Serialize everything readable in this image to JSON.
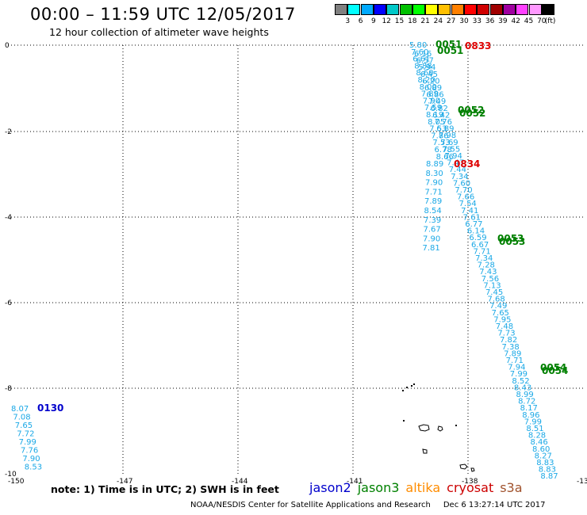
{
  "title": "00:00 – 11:59 UTC 12/05/2017",
  "subtitle": "12 hour collection of altimeter wave heights",
  "legend": {
    "unit": "(ft)",
    "colors": [
      "#808080",
      "#00ffff",
      "#00aaff",
      "#0000ff",
      "#00c8c8",
      "#00c000",
      "#00ff00",
      "#ffff00",
      "#ffc000",
      "#ff8000",
      "#ff0000",
      "#d00000",
      "#a00000",
      "#a000a0",
      "#ff40ff",
      "#ff99ff",
      "#000000"
    ],
    "labels": [
      "3",
      "6",
      "9",
      "12",
      "15",
      "18",
      "21",
      "24",
      "27",
      "30",
      "33",
      "36",
      "39",
      "42",
      "45",
      "70"
    ]
  },
  "axes": {
    "lon_labels": [
      "-150",
      "-147",
      "-144",
      "-141",
      "-138",
      "-13"
    ],
    "lat_labels": [
      "0",
      "-2",
      "-4",
      "-6",
      "-8",
      "-10"
    ]
  },
  "wave_color": "#1aa8e6",
  "track_sw": [
    "8.07",
    "7.08",
    "7.65",
    "7.72",
    "7.99",
    "7.76",
    "7.90",
    "8.53"
  ],
  "track_left": [
    "5.80",
    "7.60",
    "6.61",
    "8.88",
    "8.60",
    "8.20",
    "8.00",
    "7.89",
    "7.90",
    "7.59",
    "8.19",
    "8.05",
    "7.53",
    "7.86",
    "7.53",
    "6.78",
    "8.66",
    "8.89",
    "8.30",
    "7.90",
    "7.71",
    "7.89",
    "8.54",
    "7.39",
    "7.67",
    "7.90",
    "7.81"
  ],
  "track_right": [
    "6.16",
    "6.57",
    "5.94",
    "6.45",
    "6.20",
    "6.89",
    "6.86",
    "7.49",
    "6.82",
    "6.42",
    "7.76",
    "6.89",
    "7.98",
    "7.69",
    "7.55",
    "7.94",
    "7.47",
    "7.44",
    "7.34",
    "7.60",
    "7.70",
    "7.66",
    "7.54",
    "7.41",
    "7.61",
    "6.77",
    "6.14",
    "6.59",
    "6.67",
    "7.71",
    "7.34",
    "7.28",
    "7.43",
    "7.56",
    "7.13",
    "7.45",
    "7.68",
    "7.49",
    "7.65",
    "7.95",
    "7.48",
    "7.73",
    "7.82",
    "7.38",
    "7.89",
    "7.71",
    "7.94",
    "7.99",
    "8.52",
    "8.43",
    "8.99",
    "8.72",
    "8.17",
    "8.96",
    "7.99",
    "8.51",
    "8.28",
    "8.46",
    "8.60",
    "8.27",
    "8.83",
    "8.83",
    "8.87"
  ],
  "time_labels": [
    {
      "text": "0051",
      "color": "#008000"
    },
    {
      "text": "0051",
      "color": "#008000"
    },
    {
      "text": "0833",
      "color": "#dd0000"
    },
    {
      "text": "0052",
      "color": "#008000"
    },
    {
      "text": "0052",
      "color": "#008000"
    },
    {
      "text": "0834",
      "color": "#dd0000"
    },
    {
      "text": "0053",
      "color": "#008000"
    },
    {
      "text": "0053",
      "color": "#008000"
    },
    {
      "text": "0054",
      "color": "#008000"
    },
    {
      "text": "0054",
      "color": "#008000"
    },
    {
      "text": "0130",
      "color": "#0000cc"
    }
  ],
  "note": "note: 1) Time is in UTC; 2) SWH is in feet",
  "satellites": [
    {
      "name": "jason2",
      "color": "#0000cc"
    },
    {
      "name": "jason3",
      "color": "#008000"
    },
    {
      "name": "altika",
      "color": "#ff8c00"
    },
    {
      "name": "cryosat",
      "color": "#cc0000"
    },
    {
      "name": "s3a",
      "color": "#a0522d"
    }
  ],
  "footer": {
    "org": "NOAA/NESDIS Center for Satellite Applications and Research",
    "timestamp": "Dec 6 13:27:14 UTC 2017"
  }
}
